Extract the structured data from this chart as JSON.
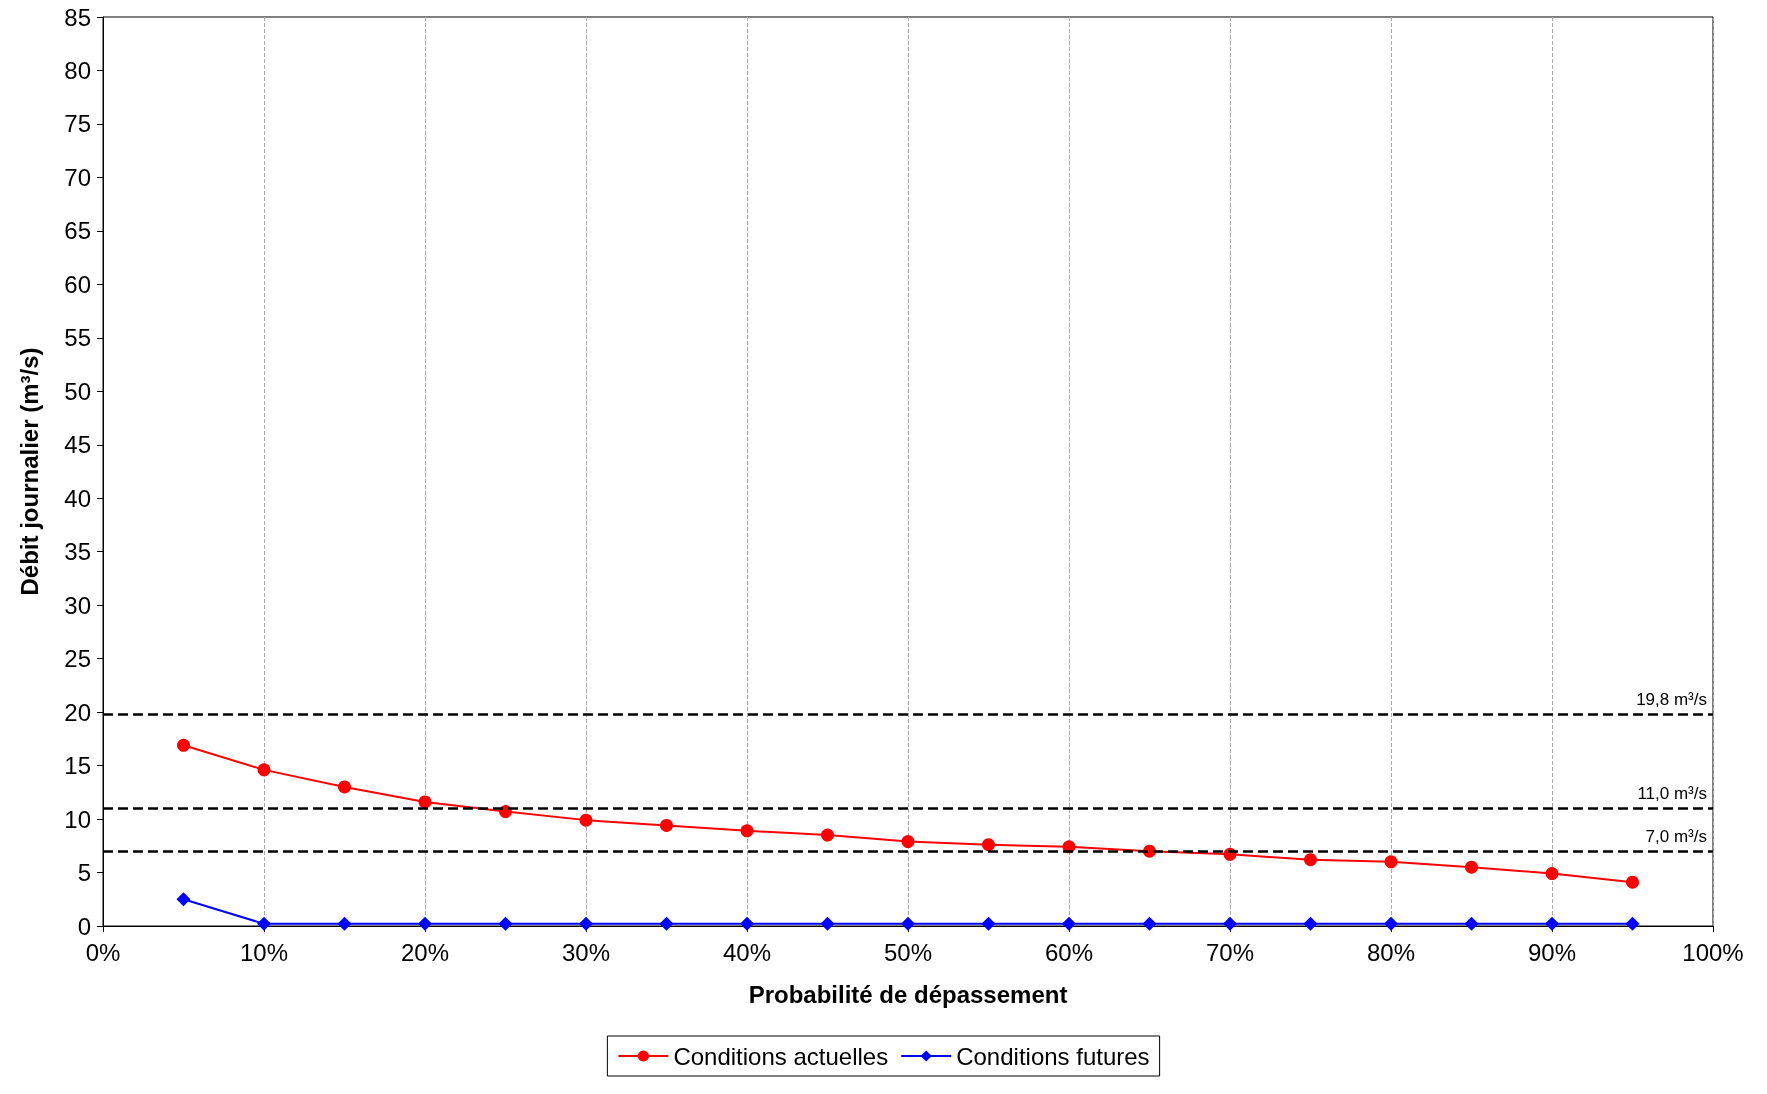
{
  "chart_data": {
    "type": "line",
    "xlabel": "Probabilité de dépassement",
    "ylabel": "Débit journalier (m³/s)",
    "x": [
      5,
      10,
      15,
      20,
      25,
      30,
      35,
      40,
      45,
      50,
      55,
      60,
      65,
      70,
      75,
      80,
      85,
      90,
      95
    ],
    "series": [
      {
        "name": "Conditions actuelles",
        "color": "#ff0000",
        "marker": "circle",
        "values": [
          16.9,
          14.6,
          13.0,
          11.6,
          10.7,
          9.9,
          9.4,
          8.9,
          8.5,
          7.9,
          7.6,
          7.4,
          7.0,
          6.7,
          6.2,
          6.0,
          5.5,
          4.9,
          4.1
        ]
      },
      {
        "name": "Conditions futures",
        "color": "#0000ff",
        "marker": "diamond",
        "values": [
          2.5,
          0.2,
          0.2,
          0.2,
          0.2,
          0.2,
          0.2,
          0.2,
          0.2,
          0.2,
          0.2,
          0.2,
          0.2,
          0.2,
          0.2,
          0.2,
          0.2,
          0.2,
          0.2
        ]
      }
    ],
    "xlim": [
      0,
      100
    ],
    "xticks": [
      {
        "value": 0,
        "label": "0%"
      },
      {
        "value": 10,
        "label": "10%"
      },
      {
        "value": 20,
        "label": "20%"
      },
      {
        "value": 30,
        "label": "30%"
      },
      {
        "value": 40,
        "label": "40%"
      },
      {
        "value": 50,
        "label": "50%"
      },
      {
        "value": 60,
        "label": "60%"
      },
      {
        "value": 70,
        "label": "70%"
      },
      {
        "value": 80,
        "label": "80%"
      },
      {
        "value": 90,
        "label": "90%"
      },
      {
        "value": 100,
        "label": "100%"
      }
    ],
    "ylim": [
      0,
      85
    ],
    "yticks": [
      0,
      5,
      10,
      15,
      20,
      25,
      30,
      35,
      40,
      45,
      50,
      55,
      60,
      65,
      70,
      75,
      80,
      85
    ],
    "ref_lines": [
      {
        "axis": "y",
        "value": 19.8,
        "label": "19,8 m³/s",
        "color": "#000000",
        "line_style": "dashed"
      },
      {
        "axis": "y",
        "value": 11.0,
        "label": "11,0 m³/s",
        "color": "#000000",
        "line_style": "dashed"
      },
      {
        "axis": "y",
        "value": 7.0,
        "label": "7,0 m³/s",
        "color": "#000000",
        "line_style": "dashed"
      }
    ],
    "grid": "x",
    "legend": "bottom"
  }
}
